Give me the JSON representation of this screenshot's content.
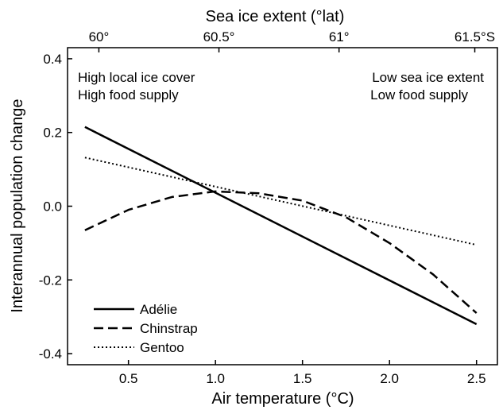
{
  "chart_data": {
    "type": "line",
    "xlabel": "Air temperature (°C)",
    "ylabel": "Interannual population change",
    "top_axis_label": "Sea ice extent (°lat)",
    "xlim": [
      0.15,
      2.62
    ],
    "ylim": [
      -0.43,
      0.43
    ],
    "x_ticks": [
      0.5,
      1.0,
      1.5,
      2.0,
      2.5
    ],
    "x_tick_labels": [
      "0.5",
      "1.0",
      "1.5",
      "2.0",
      "2.5"
    ],
    "y_ticks": [
      -0.4,
      -0.2,
      0.0,
      0.2,
      0.4
    ],
    "y_tick_labels": [
      "-0.4",
      "-0.2",
      "0.0",
      "0.2",
      "0.4"
    ],
    "top_ticks": [
      0.33,
      1.02,
      1.71,
      2.49
    ],
    "top_tick_labels": [
      "60°",
      "60.5°",
      "61°",
      "61.5°S"
    ],
    "annotations": {
      "left": [
        "High local ice cover",
        "High food supply"
      ],
      "right": [
        "Low sea ice extent",
        "Low food supply"
      ]
    },
    "legend_position": "bottom-left",
    "grid": false,
    "series": [
      {
        "name": "Adélie",
        "style": "solid",
        "x": [
          0.25,
          2.5
        ],
        "y": [
          0.215,
          -0.32
        ]
      },
      {
        "name": "Chinstrap",
        "style": "dashed",
        "x": [
          0.25,
          0.5,
          0.75,
          1.0,
          1.25,
          1.5,
          1.75,
          2.0,
          2.25,
          2.5
        ],
        "y": [
          -0.065,
          -0.01,
          0.025,
          0.04,
          0.035,
          0.015,
          -0.03,
          -0.1,
          -0.185,
          -0.29
        ]
      },
      {
        "name": "Gentoo",
        "style": "dotted",
        "x": [
          0.25,
          2.5
        ],
        "y": [
          0.132,
          -0.105
        ]
      }
    ]
  }
}
